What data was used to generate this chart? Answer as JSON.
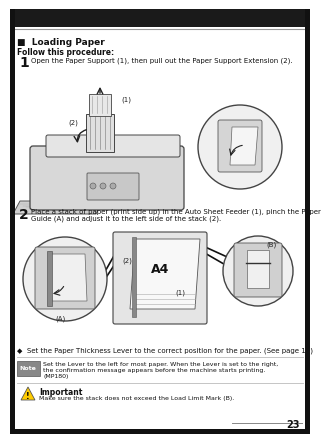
{
  "title": "Loading Paper",
  "section_title": "Loading Paper",
  "follow_text": "Follow this procedure:",
  "step1_num": "1",
  "step1_text": "Open the Paper Support (1), then pull out the Paper Support Extension (2).",
  "step2_num": "2",
  "step2_text_line1": "Place a stack of paper (print side up) in the Auto Sheet Feeder (1), pinch the Paper",
  "step2_text_line2": "Guide (A) and adjust it to the left side of the stack (2).",
  "bullet_text": "◆  Set the Paper Thickness Lever to the correct position for the paper. (See page 17)",
  "note_label": "Note",
  "note_text_line1": "Set the Lever to the left for most paper. When the Lever is set to the right,",
  "note_text_line2": "the confirmation message appears before the machine starts printing.",
  "note_text_line3": "(MP180)",
  "important_label": "Important",
  "important_text": "Make sure the stack does not exceed the Load Limit Mark (B).",
  "page_number": "23",
  "bg_color": "#ffffff",
  "header_bg": "#1a1a1a",
  "header_text_color": "#ffffff",
  "body_text_color": "#111111",
  "gray_line_color": "#999999",
  "illus_fill": "#e8e8e8",
  "illus_edge": "#444444",
  "dark_fill": "#bbbbbb",
  "note_icon_bg": "#888888"
}
